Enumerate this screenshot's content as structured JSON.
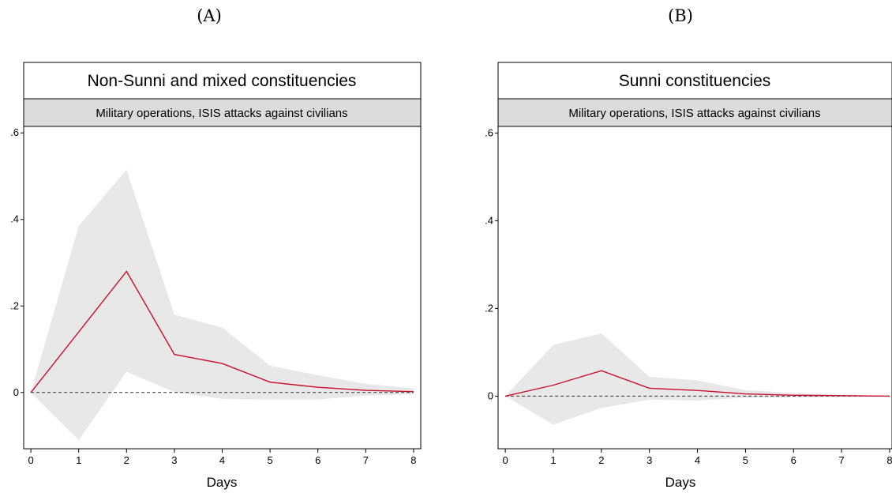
{
  "chart_data": [
    {
      "type": "line",
      "panel_label": "(A)",
      "title": "Non-Sunni and mixed constituencies",
      "subtitle": "Military operations, ISIS attacks against civilians",
      "xlabel": "Days",
      "ylabel": "",
      "x": [
        0,
        1,
        2,
        3,
        4,
        5,
        6,
        7,
        8
      ],
      "xlim": [
        -0.15,
        8.15
      ],
      "ylim": [
        -0.13,
        0.615
      ],
      "xticks": [
        0,
        1,
        2,
        3,
        4,
        5,
        6,
        7,
        8
      ],
      "xtick_labels": [
        "0",
        "1",
        "2",
        "3",
        "4",
        "5",
        "6",
        "7",
        "8"
      ],
      "yticks": [
        0,
        0.2,
        0.4,
        0.6
      ],
      "ytick_labels": [
        "0",
        ".2",
        ".4",
        ".6"
      ],
      "reference_line": 0,
      "series": [
        {
          "role": "estimate",
          "values": [
            0,
            0.14,
            0.28,
            0.088,
            0.067,
            0.024,
            0.012,
            0.005,
            0.002
          ]
        },
        {
          "role": "ci_upper",
          "values": [
            0,
            0.385,
            0.515,
            0.18,
            0.15,
            0.062,
            0.04,
            0.02,
            0.01
          ]
        },
        {
          "role": "ci_lower",
          "values": [
            0,
            -0.11,
            0.048,
            0.001,
            -0.015,
            -0.016,
            -0.016,
            -0.007,
            -0.004
          ]
        }
      ],
      "colors": {
        "line": "#c8102e",
        "band": "#e8e8e8",
        "subtitle_bg": "#dcdcdc"
      }
    },
    {
      "type": "line",
      "panel_label": "(B)",
      "title": "Sunni constituencies",
      "subtitle": "Military operations, ISIS attacks against civilians",
      "xlabel": "Days",
      "ylabel": "",
      "x": [
        0,
        1,
        2,
        3,
        4,
        5,
        6,
        7,
        8
      ],
      "xlim": [
        -0.15,
        8.05
      ],
      "ylim": [
        -0.12,
        0.615
      ],
      "xticks": [
        0,
        1,
        2,
        3,
        4,
        5,
        6,
        7,
        8
      ],
      "xtick_labels": [
        "0",
        "1",
        "2",
        "3",
        "4",
        "5",
        "6",
        "7",
        "8"
      ],
      "yticks": [
        0,
        0.2,
        0.4,
        0.6
      ],
      "ytick_labels": [
        "0",
        ".2",
        ".4",
        ".6"
      ],
      "reference_line": 0,
      "series": [
        {
          "role": "estimate",
          "values": [
            0,
            0.025,
            0.058,
            0.018,
            0.013,
            0.005,
            0.002,
            0.001,
            0
          ]
        },
        {
          "role": "ci_upper",
          "values": [
            0,
            0.117,
            0.143,
            0.044,
            0.036,
            0.014,
            0.007,
            0.003,
            0.001
          ]
        },
        {
          "role": "ci_lower",
          "values": [
            0,
            -0.065,
            -0.027,
            -0.008,
            -0.01,
            -0.004,
            -0.002,
            -0.001,
            -0.001
          ]
        }
      ],
      "colors": {
        "line": "#c8102e",
        "band": "#e8e8e8",
        "subtitle_bg": "#dcdcdc"
      }
    }
  ]
}
